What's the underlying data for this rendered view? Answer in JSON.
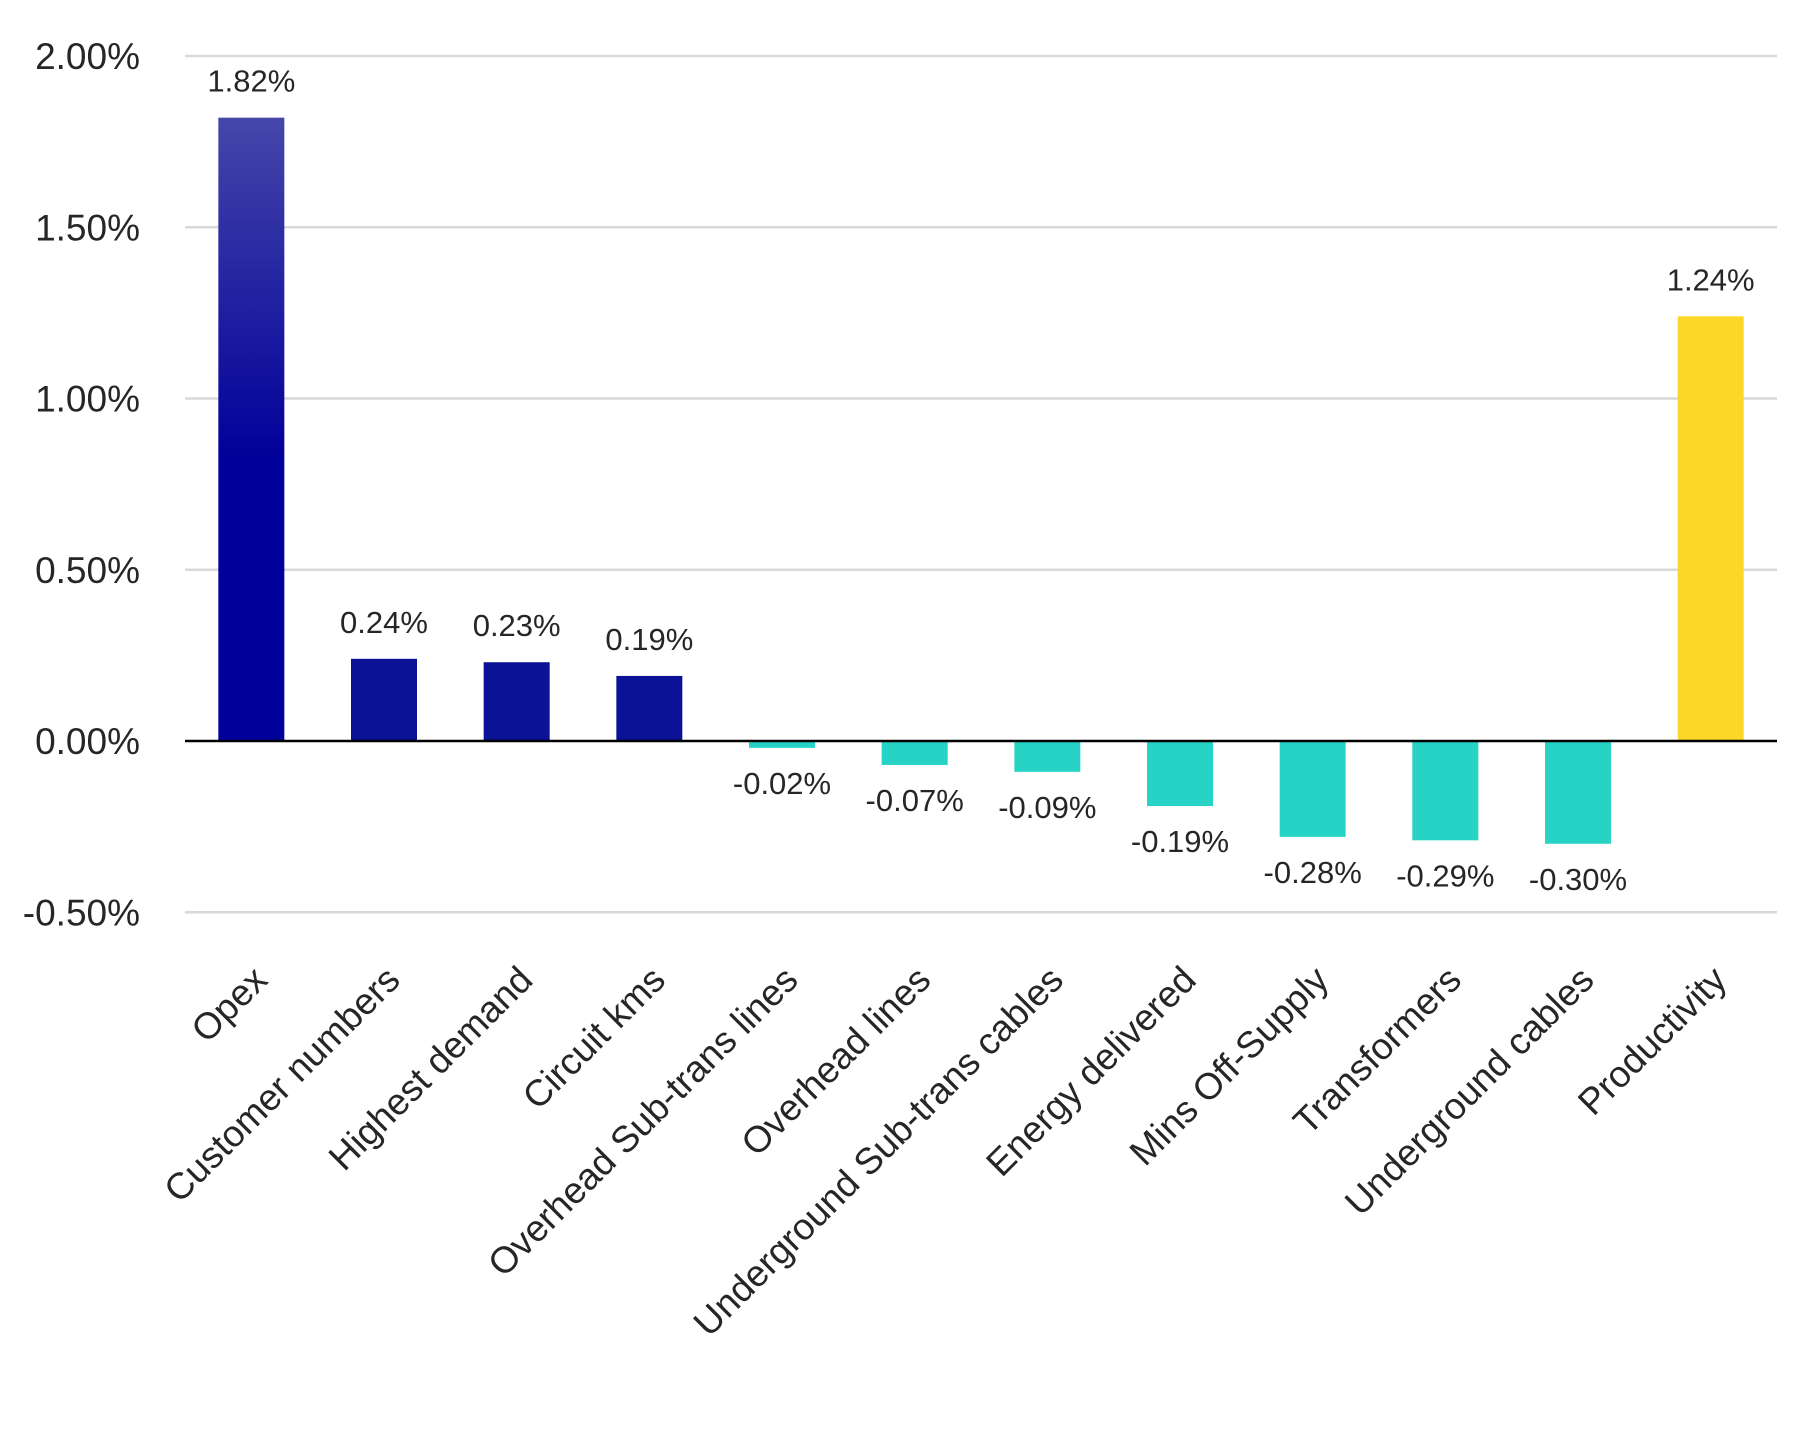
{
  "chart_data": {
    "type": "bar",
    "title": "",
    "xlabel": "",
    "ylabel": "",
    "ylim": [
      -0.5,
      2.0
    ],
    "yticks": [
      -0.5,
      0.0,
      0.5,
      1.0,
      1.5,
      2.0
    ],
    "ytick_labels": [
      "-0.50%",
      "0.00%",
      "0.50%",
      "1.00%",
      "1.50%",
      "2.00%"
    ],
    "grid": true,
    "legend": "none",
    "categories": [
      "Opex",
      "Customer numbers",
      "Highest demand",
      "Circuit kms",
      "Overhead Sub-trans lines",
      "Overhead lines",
      "Underground Sub-trans cables",
      "Energy delivered",
      "Mins Off-Supply",
      "Transformers",
      "Underground cables",
      "Productivity"
    ],
    "values": [
      1.82,
      0.24,
      0.23,
      0.19,
      -0.02,
      -0.07,
      -0.09,
      -0.19,
      -0.28,
      -0.29,
      -0.3,
      1.24
    ],
    "value_labels": [
      "1.82%",
      "0.24%",
      "0.23%",
      "0.19%",
      "-0.02%",
      "-0.07%",
      "-0.09%",
      "-0.19%",
      "-0.28%",
      "-0.29%",
      "-0.30%",
      "1.24%"
    ],
    "bar_colors": [
      "#0a0a9a",
      "#0b1296",
      "#0b1296",
      "#0b1296",
      "#26d3c5",
      "#26d3c5",
      "#26d3c5",
      "#26d3c5",
      "#26d3c5",
      "#26d3c5",
      "#26d3c5",
      "#fcd727"
    ],
    "colors": {
      "opex_top": "#4646aa",
      "opex_bottom": "#00009a",
      "positive_input": "#0b1296",
      "negative_input": "#26d3c5",
      "productivity": "#fcd727"
    }
  }
}
